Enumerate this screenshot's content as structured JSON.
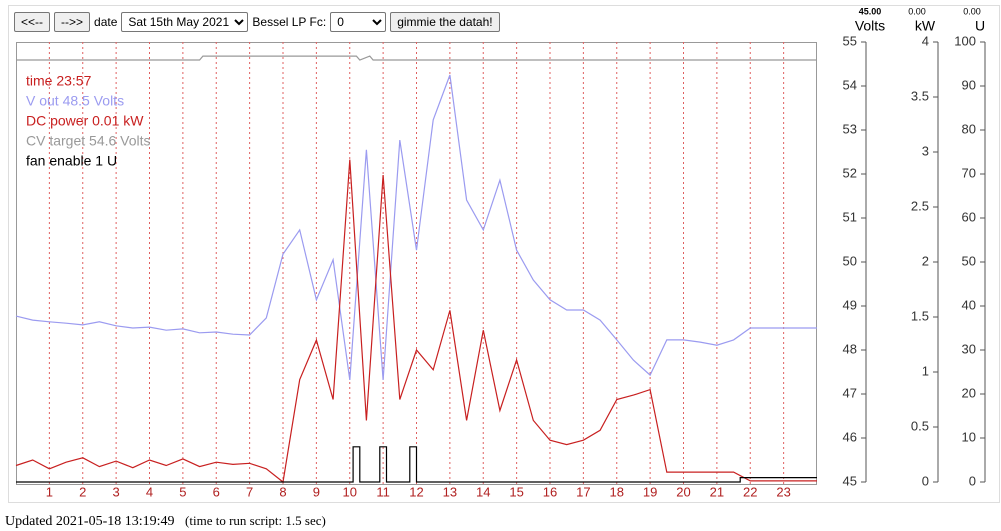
{
  "controls": {
    "prev": "<<--",
    "next": "-->>",
    "date_label": "date",
    "date_value": "Sat 15th May 2021",
    "filter_label": "Bessel LP Fc:",
    "filter_value": "0",
    "submit": "gimmie the datah!"
  },
  "footer": {
    "updated": "Updated 2021-05-18 13:19:49",
    "runtime": "(time to run script: 1.5 sec)"
  },
  "chart_data": {
    "type": "line",
    "readout_time": "time 23:57",
    "xlim": [
      0,
      24
    ],
    "xticks": [
      1,
      2,
      3,
      4,
      5,
      6,
      7,
      8,
      9,
      10,
      11,
      12,
      13,
      14,
      15,
      16,
      17,
      18,
      19,
      20,
      21,
      22,
      23
    ],
    "axes": [
      {
        "label": "Volts",
        "readout": "45.00",
        "lim": [
          45,
          55
        ],
        "ticks": [
          45,
          46,
          47,
          48,
          49,
          50,
          51,
          52,
          53,
          54,
          55
        ]
      },
      {
        "label": "kW",
        "readout": "0.00",
        "lim": [
          0,
          4
        ],
        "ticks": [
          0,
          0.5,
          1,
          1.5,
          2,
          2.5,
          3,
          3.5,
          4
        ]
      },
      {
        "label": "U",
        "readout": "0.00",
        "lim": [
          0,
          100
        ],
        "ticks": [
          0,
          10,
          20,
          30,
          40,
          50,
          60,
          70,
          80,
          90,
          100
        ]
      }
    ],
    "series": [
      {
        "name": "V out 48.5 Volts",
        "color": "#9b9bf0",
        "axis": 0,
        "x": [
          0,
          0.5,
          1,
          1.5,
          2,
          2.5,
          3,
          3.5,
          4,
          4.5,
          5,
          5.5,
          6,
          6.5,
          7,
          7.5,
          8,
          8.5,
          9,
          9.5,
          10,
          10.5,
          11,
          11.5,
          12,
          12.5,
          13,
          13.5,
          14,
          14.5,
          15,
          15.5,
          16,
          16.5,
          17,
          17.5,
          18,
          18.5,
          19,
          19.5,
          20,
          20.5,
          21,
          21.5,
          22,
          22.5,
          23,
          23.5,
          24
        ],
        "values": [
          48.77,
          48.68,
          48.64,
          48.61,
          48.57,
          48.64,
          48.55,
          48.5,
          48.52,
          48.45,
          48.48,
          48.39,
          48.41,
          48.36,
          48.34,
          48.73,
          50.18,
          50.73,
          49.14,
          50.05,
          47.32,
          52.55,
          47.32,
          52.77,
          50.27,
          53.23,
          54.25,
          51.41,
          50.73,
          51.86,
          50.27,
          49.59,
          49.14,
          48.91,
          48.91,
          48.68,
          48.23,
          47.77,
          47.43,
          48.23,
          48.23,
          48.18,
          48.11,
          48.23,
          48.5,
          48.5,
          48.5,
          48.5,
          48.5
        ]
      },
      {
        "name": "DC power 0.01 kW",
        "color": "#c82020",
        "axis": 1,
        "x": [
          0,
          0.5,
          1,
          1.5,
          2,
          2.5,
          3,
          3.5,
          4,
          4.5,
          5,
          5.5,
          6,
          6.5,
          7,
          7.5,
          8,
          8.5,
          9,
          9.5,
          10,
          10.5,
          11,
          11.5,
          12,
          12.5,
          13,
          13.5,
          14,
          14.5,
          15,
          15.5,
          16,
          16.5,
          17,
          17.5,
          18,
          18.5,
          19,
          19.5,
          20,
          20.5,
          21,
          21.5,
          22,
          22.5,
          23,
          23.5,
          24
        ],
        "values": [
          0.15,
          0.2,
          0.12,
          0.18,
          0.22,
          0.14,
          0.19,
          0.13,
          0.2,
          0.15,
          0.21,
          0.14,
          0.18,
          0.16,
          0.17,
          0.12,
          0,
          0.93,
          1.29,
          0.75,
          2.93,
          0.56,
          2.79,
          0.75,
          1.2,
          1.02,
          1.56,
          0.56,
          1.38,
          0.65,
          1.11,
          0.56,
          0.38,
          0.34,
          0.38,
          0.47,
          0.75,
          0.79,
          0.84,
          0.09,
          0.09,
          0.09,
          0.09,
          0.09,
          0.01,
          0.01,
          0.01,
          0.01,
          0.01
        ]
      },
      {
        "name": "CV target 54.6 Volts",
        "color": "#999999",
        "axis": 0,
        "x": [
          0,
          5.5,
          5.6,
          10.2,
          10.3,
          10.6,
          10.7,
          24
        ],
        "values": [
          54.59,
          54.59,
          54.68,
          54.68,
          54.59,
          54.68,
          54.59,
          54.59
        ]
      },
      {
        "name": "fan enable 1 U",
        "color": "#000000",
        "axis": 2,
        "x": [
          0,
          10.1,
          10.1,
          10.3,
          10.3,
          10.9,
          10.9,
          11.1,
          11.1,
          11.8,
          11.8,
          12,
          12,
          21.7,
          21.7,
          24
        ],
        "values": [
          0,
          0,
          8,
          8,
          0,
          0,
          8,
          8,
          0,
          0,
          8,
          8,
          0,
          0,
          1,
          1
        ]
      }
    ]
  }
}
